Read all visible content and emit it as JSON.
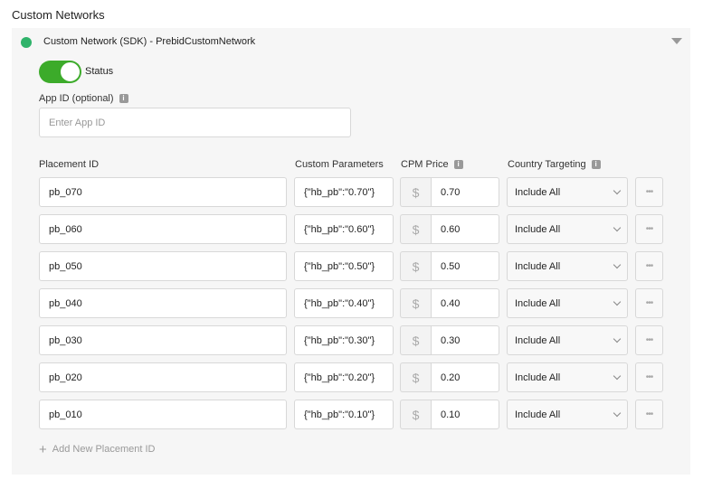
{
  "section_title": "Custom Networks",
  "network": {
    "name": "Custom Network (SDK) - PrebidCustomNetwork",
    "status_color": "#2fb36a",
    "collapse_icon": "caret-down-icon"
  },
  "status": {
    "label": "Status",
    "enabled": true
  },
  "app_id": {
    "label": "App ID (optional)",
    "placeholder": "Enter App ID",
    "value": ""
  },
  "columns": {
    "placement": "Placement ID",
    "params": "Custom Parameters",
    "cpm": "CPM Price",
    "country": "Country Targeting"
  },
  "currency_symbol": "$",
  "more_glyph": "•••",
  "rows": [
    {
      "placement": "pb_070",
      "params": "{\"hb_pb\":\"0.70\"}",
      "cpm": "0.70",
      "country": "Include All"
    },
    {
      "placement": "pb_060",
      "params": "{\"hb_pb\":\"0.60\"}",
      "cpm": "0.60",
      "country": "Include All"
    },
    {
      "placement": "pb_050",
      "params": "{\"hb_pb\":\"0.50\"}",
      "cpm": "0.50",
      "country": "Include All"
    },
    {
      "placement": "pb_040",
      "params": "{\"hb_pb\":\"0.40\"}",
      "cpm": "0.40",
      "country": "Include All"
    },
    {
      "placement": "pb_030",
      "params": "{\"hb_pb\":\"0.30\"}",
      "cpm": "0.30",
      "country": "Include All"
    },
    {
      "placement": "pb_020",
      "params": "{\"hb_pb\":\"0.20\"}",
      "cpm": "0.20",
      "country": "Include All"
    },
    {
      "placement": "pb_010",
      "params": "{\"hb_pb\":\"0.10\"}",
      "cpm": "0.10",
      "country": "Include All"
    }
  ],
  "add_label": "Add New Placement ID"
}
